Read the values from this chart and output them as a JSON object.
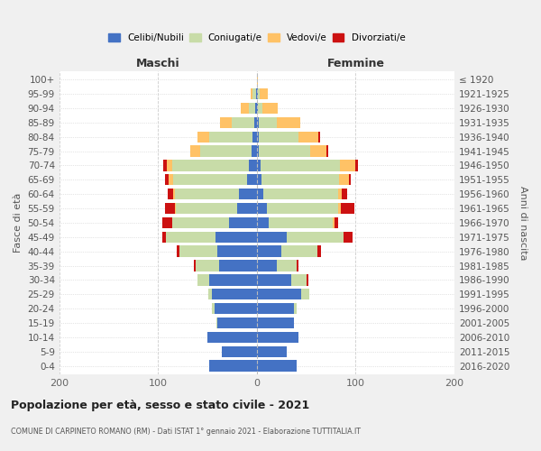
{
  "age_groups": [
    "100+",
    "95-99",
    "90-94",
    "85-89",
    "80-84",
    "75-79",
    "70-74",
    "65-69",
    "60-64",
    "55-59",
    "50-54",
    "45-49",
    "40-44",
    "35-39",
    "30-34",
    "25-29",
    "20-24",
    "15-19",
    "10-14",
    "5-9",
    "0-4"
  ],
  "birth_years": [
    "≤ 1920",
    "1921-1925",
    "1926-1930",
    "1931-1935",
    "1936-1940",
    "1941-1945",
    "1946-1950",
    "1951-1955",
    "1956-1960",
    "1961-1965",
    "1966-1970",
    "1971-1975",
    "1976-1980",
    "1981-1985",
    "1986-1990",
    "1991-1995",
    "1996-2000",
    "2001-2005",
    "2006-2010",
    "2011-2015",
    "2016-2020"
  ],
  "colors": {
    "celibi": "#4472C4",
    "coniugati": "#c8dca8",
    "vedovi": "#ffc266",
    "divorziati": "#cc1111"
  },
  "maschi_celibi": [
    0,
    1,
    2,
    3,
    4,
    5,
    8,
    10,
    18,
    20,
    28,
    42,
    40,
    38,
    48,
    45,
    43,
    40,
    50,
    35,
    48
  ],
  "maschi_coniugati": [
    0,
    3,
    6,
    22,
    44,
    52,
    78,
    75,
    65,
    62,
    58,
    50,
    38,
    24,
    12,
    4,
    2,
    1,
    0,
    0,
    0
  ],
  "maschi_vedovi": [
    0,
    2,
    8,
    12,
    12,
    10,
    5,
    4,
    2,
    1,
    0,
    0,
    0,
    0,
    0,
    0,
    0,
    0,
    0,
    0,
    0
  ],
  "maschi_divorziati": [
    0,
    0,
    0,
    0,
    0,
    0,
    4,
    4,
    5,
    10,
    10,
    4,
    3,
    2,
    0,
    0,
    0,
    0,
    0,
    0,
    0
  ],
  "femmine_celibi": [
    0,
    1,
    1,
    2,
    2,
    2,
    4,
    5,
    7,
    10,
    12,
    30,
    25,
    20,
    35,
    45,
    38,
    38,
    42,
    30,
    40
  ],
  "femmine_coniugati": [
    0,
    2,
    5,
    18,
    40,
    52,
    80,
    78,
    75,
    72,
    65,
    58,
    36,
    20,
    15,
    8,
    2,
    0,
    0,
    0,
    0
  ],
  "femmine_vedovi": [
    1,
    8,
    15,
    24,
    20,
    16,
    16,
    10,
    4,
    3,
    2,
    0,
    0,
    0,
    0,
    0,
    0,
    0,
    0,
    0,
    0
  ],
  "femmine_divorziati": [
    0,
    0,
    0,
    0,
    2,
    2,
    2,
    2,
    5,
    14,
    3,
    9,
    4,
    2,
    2,
    0,
    0,
    0,
    0,
    0,
    0
  ],
  "title": "Popolazione per età, sesso e stato civile - 2021",
  "subtitle": "COMUNE DI CARPINETO ROMANO (RM) - Dati ISTAT 1° gennaio 2021 - Elaborazione TUTTITALIA.IT",
  "xlabel_left": "Maschi",
  "xlabel_right": "Femmine",
  "ylabel_left": "Fasce di età",
  "ylabel_right": "Anni di nascita",
  "legend_labels": [
    "Celibi/Nubili",
    "Coniugati/e",
    "Vedovi/e",
    "Divorziati/e"
  ],
  "background_color": "#f0f0f0",
  "plot_bg_color": "#ffffff",
  "xlim": 200,
  "xticks": [
    -200,
    -100,
    0,
    100,
    200
  ]
}
